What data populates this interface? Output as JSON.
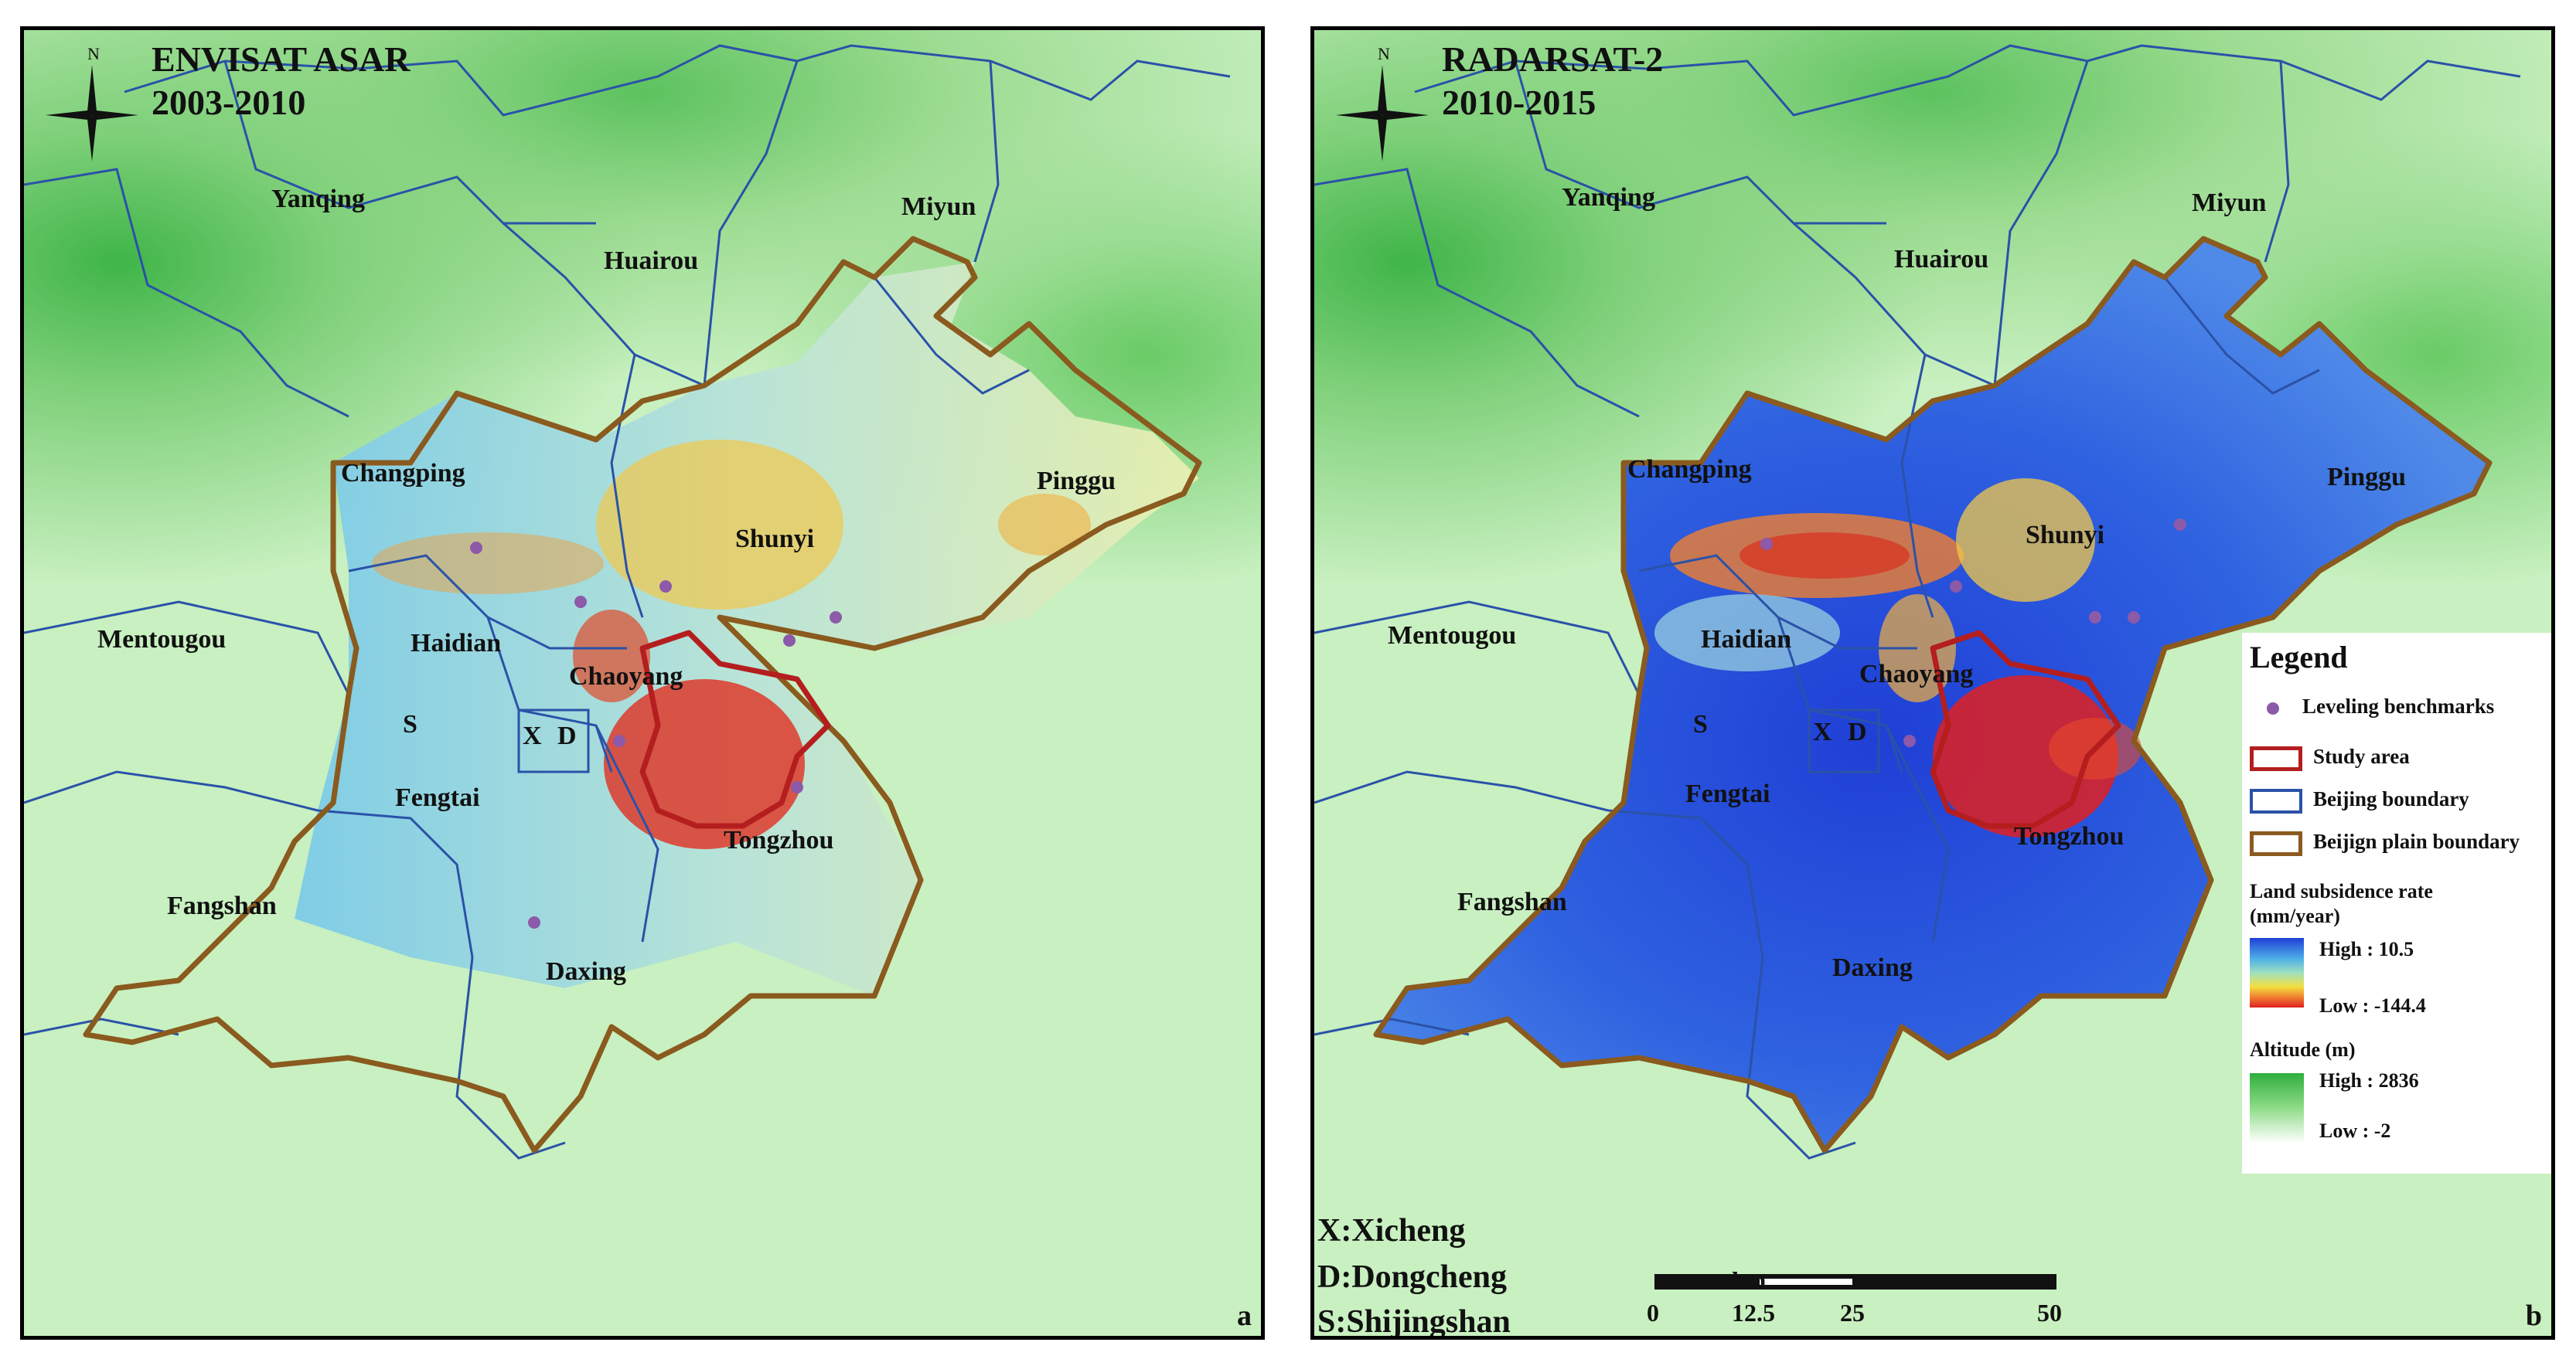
{
  "panel_a": {
    "title_line1": "ENVISAT ASAR",
    "title_line2": "2003-2010",
    "letter": "a",
    "north": "N"
  },
  "panel_b": {
    "title_line1": "RADARSAT-2",
    "title_line2": "2010-2015",
    "letter": "b",
    "north": "N"
  },
  "districts": {
    "yanqing": "Yanqing",
    "huairou": "Huairou",
    "miyun": "Miyun",
    "changping": "Changping",
    "pinggu": "Pinggu",
    "shunyi": "Shunyi",
    "mentougou": "Mentougou",
    "haidian": "Haidian",
    "chaoyang": "Chaoyang",
    "x": "X",
    "d": "D",
    "s": "S",
    "fengtai": "Fengtai",
    "tongzhou": "Tongzhou",
    "fangshan": "Fangshan",
    "daxing": "Daxing"
  },
  "abbreviations": {
    "x": "X:Xicheng",
    "d": "D:Dongcheng",
    "s": "S:Shijingshan"
  },
  "legend": {
    "title": "Legend",
    "benchmarks": "Leveling benchmarks",
    "study_area": "Study area",
    "beijing_boundary": "Beijing boundary",
    "plain_boundary": "Beijign plain boundary",
    "subsidence_title_1": "Land subsidence rate",
    "subsidence_title_2": "(mm/year)",
    "subsidence_high": "High : 10.5",
    "subsidence_low": "Low : -144.4",
    "altitude_title": "Altitude (m)",
    "altitude_high": "High : 2836",
    "altitude_low": "Low : -2"
  },
  "scale": {
    "unit": "km",
    "ticks": [
      "0",
      "12.5",
      "25",
      "50"
    ]
  },
  "colors": {
    "frame": "#000000",
    "beijing_boundary": "#2a52a8",
    "plain_boundary": "#8a5a1e",
    "study_area": "#b41e1e",
    "benchmark": "#8c5aa8"
  }
}
